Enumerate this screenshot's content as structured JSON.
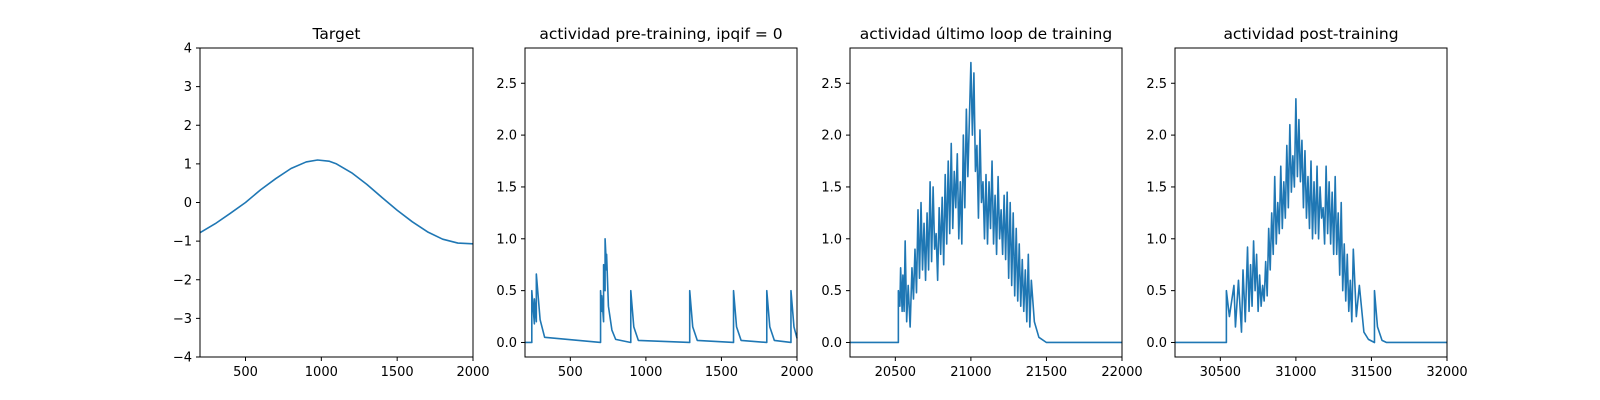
{
  "colors": {
    "line": "#1f77b4",
    "axis": "#000000",
    "background": "#ffffff"
  },
  "chart_data": [
    {
      "type": "line",
      "title": "Target",
      "xlim": [
        200,
        2000
      ],
      "ylim": [
        -4,
        4
      ],
      "xticks": [
        500,
        1000,
        1500,
        2000
      ],
      "xtick_labels": [
        "500",
        "1000",
        "1500",
        "2000"
      ],
      "yticks": [
        -4,
        -3,
        -2,
        -1,
        0,
        1,
        2,
        3,
        4
      ],
      "ytick_labels": [
        "−4",
        "−3",
        "−2",
        "−1",
        "0",
        "1",
        "2",
        "3",
        "4"
      ],
      "grid": false,
      "series": [
        {
          "x": [
            200,
            300,
            400,
            500,
            600,
            700,
            800,
            900,
            975,
            1050,
            1100,
            1200,
            1300,
            1400,
            1500,
            1600,
            1700,
            1800,
            1900,
            2000
          ],
          "y": [
            -0.78,
            -0.55,
            -0.28,
            0.0,
            0.33,
            0.62,
            0.88,
            1.05,
            1.1,
            1.07,
            1.0,
            0.77,
            0.47,
            0.13,
            -0.2,
            -0.5,
            -0.76,
            -0.95,
            -1.05,
            -1.07
          ]
        }
      ]
    },
    {
      "type": "line",
      "title": "actividad pre-training, ipqif = 0",
      "xlim": [
        200,
        2000
      ],
      "ylim": [
        -0.14,
        2.84
      ],
      "xticks": [
        500,
        1000,
        1500,
        2000
      ],
      "xtick_labels": [
        "500",
        "1000",
        "1500",
        "2000"
      ],
      "yticks": [
        0.0,
        0.5,
        1.0,
        1.5,
        2.0,
        2.5
      ],
      "ytick_labels": [
        "0.0",
        "0.5",
        "1.0",
        "1.5",
        "2.0",
        "2.5"
      ],
      "grid": false,
      "series": [
        {
          "x": [
            200,
            245,
            245,
            262,
            262,
            275,
            275,
            300,
            330,
            700,
            700,
            708,
            708,
            720,
            720,
            730,
            730,
            740,
            740,
            752,
            775,
            800,
            900,
            900,
            920,
            950,
            1290,
            1290,
            1310,
            1340,
            1580,
            1580,
            1600,
            1630,
            1800,
            1800,
            1820,
            1850,
            1960,
            1960,
            1980,
            2000
          ],
          "y": [
            0.0,
            0.0,
            0.5,
            0.18,
            0.42,
            0.2,
            0.66,
            0.22,
            0.05,
            0.0,
            0.5,
            0.3,
            0.45,
            0.2,
            0.75,
            0.5,
            1.0,
            0.7,
            0.85,
            0.35,
            0.12,
            0.03,
            0.0,
            0.5,
            0.15,
            0.02,
            0.0,
            0.5,
            0.15,
            0.02,
            0.0,
            0.5,
            0.15,
            0.02,
            0.0,
            0.5,
            0.15,
            0.02,
            0.0,
            0.5,
            0.15,
            0.04
          ]
        }
      ]
    },
    {
      "type": "line",
      "title": "actividad último loop de training",
      "xlim": [
        20200,
        22000
      ],
      "ylim": [
        -0.14,
        2.84
      ],
      "xticks": [
        20500,
        21000,
        21500,
        22000
      ],
      "xtick_labels": [
        "20500",
        "21000",
        "21500",
        "22000"
      ],
      "yticks": [
        0.0,
        0.5,
        1.0,
        1.5,
        2.0,
        2.5
      ],
      "ytick_labels": [
        "0.0",
        "0.5",
        "1.0",
        "1.5",
        "2.0",
        "2.5"
      ],
      "grid": false,
      "series": [
        {
          "x": [
            20200,
            20300,
            20400,
            20520,
            20520,
            20530,
            20535,
            20545,
            20550,
            20558,
            20565,
            20575,
            20585,
            20598,
            20610,
            20620,
            20630,
            20640,
            20650,
            20660,
            20670,
            20680,
            20690,
            20700,
            20710,
            20720,
            20730,
            20740,
            20750,
            20760,
            20770,
            20780,
            20790,
            20800,
            20810,
            20820,
            20830,
            20840,
            20850,
            20860,
            20870,
            20880,
            20890,
            20900,
            20910,
            20920,
            20930,
            20940,
            20950,
            20960,
            20970,
            20980,
            20990,
            21000,
            21010,
            21020,
            21030,
            21040,
            21050,
            21060,
            21070,
            21080,
            21090,
            21100,
            21110,
            21120,
            21130,
            21140,
            21150,
            21160,
            21170,
            21180,
            21190,
            21200,
            21210,
            21220,
            21230,
            21240,
            21250,
            21260,
            21270,
            21280,
            21290,
            21300,
            21310,
            21320,
            21330,
            21340,
            21350,
            21360,
            21370,
            21380,
            21390,
            21400,
            21420,
            21450,
            21500,
            21600,
            21800,
            22000
          ],
          "y": [
            0.0,
            0.0,
            0.0,
            0.0,
            0.5,
            0.35,
            0.72,
            0.3,
            0.65,
            0.3,
            0.98,
            0.2,
            0.55,
            0.15,
            0.72,
            0.42,
            0.9,
            0.48,
            1.28,
            0.62,
            1.35,
            0.7,
            1.15,
            0.6,
            1.25,
            0.7,
            1.55,
            0.78,
            1.5,
            0.9,
            1.05,
            0.6,
            1.3,
            0.85,
            1.4,
            0.75,
            1.62,
            0.95,
            1.75,
            1.05,
            1.92,
            1.1,
            1.65,
            1.3,
            1.82,
            1.0,
            1.55,
            0.95,
            2.0,
            1.3,
            2.25,
            1.6,
            2.15,
            2.7,
            2.0,
            2.6,
            1.65,
            1.9,
            1.2,
            2.05,
            1.35,
            1.55,
            1.0,
            1.62,
            0.95,
            1.55,
            1.1,
            1.75,
            0.95,
            1.42,
            0.85,
            1.6,
            1.0,
            1.28,
            0.85,
            1.42,
            0.8,
            1.45,
            0.62,
            1.35,
            0.55,
            1.25,
            0.45,
            1.1,
            0.4,
            0.95,
            0.35,
            0.8,
            0.3,
            0.7,
            0.2,
            0.85,
            0.15,
            0.6,
            0.2,
            0.05,
            0.0,
            0.0,
            0.0,
            0.0
          ]
        }
      ]
    },
    {
      "type": "line",
      "title": "actividad post-training",
      "xlim": [
        30200,
        32000
      ],
      "ylim": [
        -0.14,
        2.84
      ],
      "xticks": [
        30500,
        31000,
        31500,
        32000
      ],
      "xtick_labels": [
        "30500",
        "31000",
        "31500",
        "32000"
      ],
      "yticks": [
        0.0,
        0.5,
        1.0,
        1.5,
        2.0,
        2.5
      ],
      "ytick_labels": [
        "0.0",
        "0.5",
        "1.0",
        "1.5",
        "2.0",
        "2.5"
      ],
      "grid": false,
      "series": [
        {
          "x": [
            30200,
            30300,
            30400,
            30540,
            30540,
            30560,
            30590,
            30600,
            30620,
            30640,
            30650,
            30665,
            30680,
            30690,
            30700,
            30710,
            30720,
            30730,
            30740,
            30750,
            30760,
            30770,
            30780,
            30790,
            30800,
            30810,
            30820,
            30830,
            30840,
            30850,
            30860,
            30870,
            30880,
            30890,
            30900,
            30910,
            30920,
            30930,
            30940,
            30950,
            30960,
            30970,
            30980,
            30990,
            31000,
            31010,
            31020,
            31030,
            31040,
            31050,
            31060,
            31070,
            31080,
            31090,
            31100,
            31110,
            31120,
            31130,
            31140,
            31150,
            31160,
            31170,
            31180,
            31190,
            31200,
            31210,
            31220,
            31230,
            31240,
            31250,
            31260,
            31270,
            31280,
            31290,
            31300,
            31310,
            31320,
            31330,
            31340,
            31350,
            31360,
            31370,
            31380,
            31400,
            31420,
            31450,
            31480,
            31520,
            31520,
            31540,
            31570,
            31600,
            31800,
            32000
          ],
          "y": [
            0.0,
            0.0,
            0.0,
            0.0,
            0.5,
            0.25,
            0.55,
            0.15,
            0.6,
            0.1,
            0.7,
            0.2,
            0.92,
            0.3,
            0.75,
            0.35,
            0.98,
            0.5,
            0.85,
            0.3,
            0.65,
            0.35,
            0.55,
            0.4,
            0.78,
            0.45,
            1.1,
            0.7,
            1.25,
            0.85,
            1.6,
            0.95,
            1.35,
            1.05,
            1.7,
            1.1,
            1.55,
            1.2,
            1.9,
            1.3,
            2.1,
            1.45,
            1.8,
            1.5,
            2.35,
            1.6,
            2.15,
            1.55,
            1.95,
            1.3,
            1.85,
            1.2,
            1.6,
            1.1,
            1.75,
            1.0,
            1.55,
            1.05,
            1.7,
            1.0,
            1.5,
            1.2,
            1.3,
            0.95,
            1.7,
            1.05,
            1.55,
            0.95,
            1.45,
            0.85,
            1.6,
            0.85,
            1.25,
            0.65,
            1.35,
            0.5,
            0.95,
            0.4,
            0.85,
            0.3,
            0.6,
            0.2,
            0.9,
            0.25,
            0.55,
            0.1,
            0.03,
            0.0,
            0.5,
            0.15,
            0.02,
            0.0,
            0.0,
            0.0
          ]
        }
      ]
    }
  ]
}
